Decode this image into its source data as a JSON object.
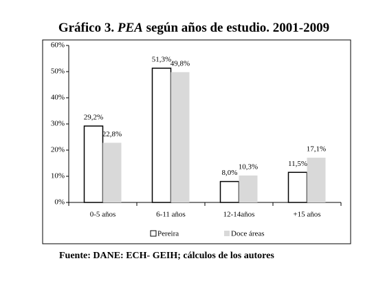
{
  "chart_data": {
    "type": "bar",
    "title": [
      "Gráfico 3. ",
      "PEA",
      " según años de estudio. 2001-2009"
    ],
    "categories": [
      "0-5 años",
      "6-11 años",
      "12-14años",
      "+15 años"
    ],
    "series": [
      {
        "name": "Pereira",
        "color": "#ffffff",
        "values": [
          29.2,
          51.3,
          8.0,
          11.5
        ],
        "value_labels": [
          "29,2%",
          "51,3%",
          "8,0%",
          "11,5%"
        ]
      },
      {
        "name": "Doce áreas",
        "color": "#d9d9d9",
        "values": [
          22.8,
          49.8,
          10.3,
          17.1
        ],
        "value_labels": [
          "22,8%",
          "49,8%",
          "10,3%",
          "17,1%"
        ]
      }
    ],
    "ylim": [
      0,
      60
    ],
    "yticks": [
      {
        "value": 0,
        "label": "0%"
      },
      {
        "value": 10,
        "label": "10%"
      },
      {
        "value": 20,
        "label": "20%"
      },
      {
        "value": 30,
        "label": "30%"
      },
      {
        "value": 40,
        "label": "40%"
      },
      {
        "value": 50,
        "label": "50%"
      },
      {
        "value": 60,
        "label": "60%"
      }
    ],
    "legend": "bottom",
    "source": "Fuente: DANE: ECH- GEIH; cálculos de los autores"
  }
}
